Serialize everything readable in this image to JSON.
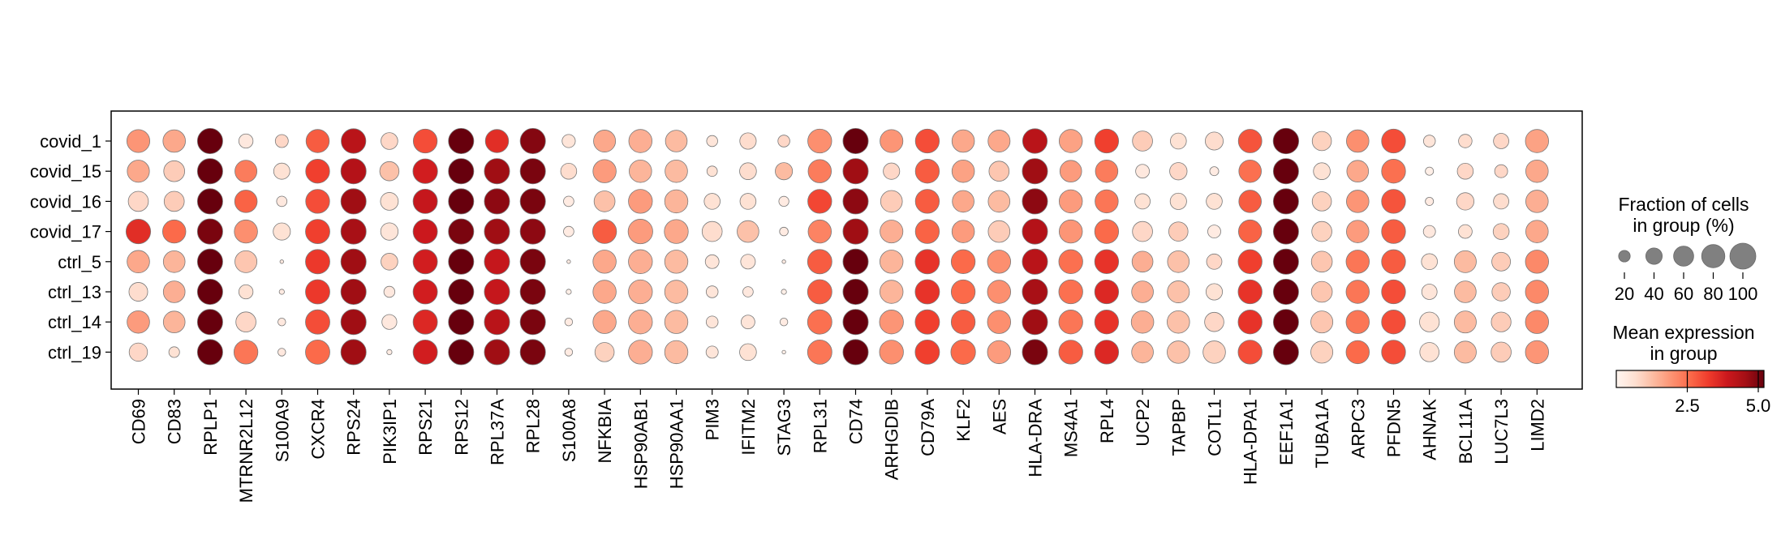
{
  "chart_data": {
    "type": "dotplot",
    "groups": [
      "covid_1",
      "covid_15",
      "covid_16",
      "covid_17",
      "ctrl_5",
      "ctrl_13",
      "ctrl_14",
      "ctrl_19"
    ],
    "genes": [
      "CD69",
      "CD83",
      "RPLP1",
      "MTRNR2L12",
      "S100A9",
      "CXCR4",
      "RPS24",
      "PIK3IP1",
      "RPS21",
      "RPS12",
      "RPL37A",
      "RPL28",
      "S100A8",
      "NFKBIA",
      "HSP90AB1",
      "HSP90AA1",
      "PIM3",
      "IFITM2",
      "STAG3",
      "RPL31",
      "CD74",
      "ARHGDIB",
      "CD79A",
      "KLF2",
      "AES",
      "HLA-DRA",
      "MS4A1",
      "RPL4",
      "UCP2",
      "TAPBP",
      "COTL1",
      "HLA-DPA1",
      "EEF1A1",
      "TUBA1A",
      "ARPC3",
      "PFDN5",
      "AHNAK",
      "BCL11A",
      "LUC7L3",
      "LIMD2"
    ],
    "fraction_pct": [
      [
        78,
        75,
        95,
        30,
        25,
        80,
        90,
        42,
        85,
        95,
        80,
        95,
        26,
        72,
        80,
        70,
        18,
        40,
        21,
        85,
        95,
        78,
        85,
        75,
        72,
        90,
        80,
        85,
        60,
        38,
        48,
        82,
        97,
        55,
        75,
        85,
        21,
        27,
        35,
        80
      ],
      [
        73,
        65,
        95,
        72,
        39,
        85,
        95,
        55,
        90,
        95,
        95,
        95,
        38,
        80,
        75,
        75,
        16,
        42,
        44,
        80,
        95,
        40,
        85,
        75,
        60,
        95,
        70,
        75,
        28,
        45,
        12,
        75,
        95,
        42,
        70,
        85,
        10,
        38,
        25,
        75
      ],
      [
        60,
        60,
        95,
        75,
        16,
        85,
        95,
        47,
        88,
        95,
        95,
        95,
        16,
        65,
        85,
        80,
        38,
        38,
        15,
        85,
        95,
        70,
        85,
        70,
        70,
        95,
        80,
        80,
        35,
        40,
        38,
        75,
        95,
        55,
        75,
        85,
        10,
        45,
        35,
        75
      ],
      [
        90,
        80,
        95,
        80,
        44,
        88,
        95,
        45,
        88,
        95,
        95,
        95,
        16,
        85,
        90,
        85,
        60,
        70,
        11,
        80,
        95,
        78,
        85,
        75,
        70,
        95,
        80,
        85,
        60,
        55,
        25,
        80,
        95,
        60,
        75,
        85,
        22,
        28,
        38,
        75
      ],
      [
        75,
        70,
        95,
        72,
        2,
        88,
        95,
        42,
        88,
        95,
        95,
        95,
        2,
        80,
        85,
        80,
        28,
        32,
        2,
        88,
        95,
        80,
        88,
        85,
        80,
        95,
        85,
        85,
        65,
        70,
        35,
        85,
        95,
        65,
        80,
        85,
        38,
        72,
        52,
        80
      ],
      [
        52,
        70,
        95,
        30,
        4,
        88,
        95,
        18,
        88,
        95,
        95,
        95,
        4,
        80,
        85,
        80,
        21,
        16,
        4,
        88,
        95,
        80,
        88,
        85,
        80,
        95,
        85,
        85,
        70,
        72,
        40,
        85,
        95,
        65,
        80,
        85,
        35,
        70,
        50,
        80
      ],
      [
        75,
        70,
        95,
        60,
        9,
        88,
        95,
        33,
        88,
        95,
        95,
        95,
        9,
        80,
        85,
        80,
        21,
        28,
        9,
        88,
        95,
        85,
        88,
        85,
        80,
        95,
        85,
        85,
        75,
        75,
        55,
        85,
        95,
        72,
        80,
        85,
        58,
        72,
        58,
        80
      ],
      [
        50,
        17,
        95,
        85,
        9,
        88,
        95,
        4,
        88,
        95,
        95,
        95,
        9,
        55,
        85,
        80,
        22,
        42,
        2,
        88,
        95,
        85,
        88,
        90,
        80,
        95,
        85,
        85,
        70,
        75,
        75,
        85,
        95,
        72,
        80,
        85,
        55,
        72,
        60,
        80
      ]
    ],
    "mean_expression": [
      [
        1.9,
        1.6,
        5.2,
        0.4,
        0.8,
        2.8,
        4.2,
        0.8,
        3.0,
        5.8,
        3.5,
        4.9,
        0.5,
        1.6,
        1.5,
        1.3,
        0.5,
        0.7,
        0.8,
        2.0,
        5.3,
        1.9,
        3.0,
        1.6,
        1.6,
        4.2,
        1.7,
        3.2,
        1.0,
        0.6,
        0.7,
        2.9,
        6.5,
        0.9,
        2.0,
        3.0,
        0.5,
        0.7,
        0.8,
        1.7
      ],
      [
        1.6,
        1.0,
        5.3,
        2.3,
        0.6,
        3.2,
        4.3,
        1.2,
        3.8,
        5.2,
        4.6,
        5.0,
        0.7,
        1.8,
        1.4,
        1.3,
        0.6,
        0.7,
        1.3,
        2.3,
        4.6,
        0.8,
        2.8,
        1.7,
        1.1,
        4.6,
        1.8,
        2.3,
        0.4,
        0.8,
        0.3,
        2.5,
        5.5,
        0.6,
        1.6,
        2.5,
        0.2,
        0.8,
        0.8,
        1.6
      ],
      [
        0.8,
        1.0,
        5.7,
        2.7,
        0.4,
        3.0,
        4.6,
        0.6,
        4.0,
        5.6,
        4.8,
        5.0,
        0.3,
        1.2,
        1.8,
        1.4,
        0.6,
        0.6,
        0.3,
        3.1,
        4.8,
        1.0,
        2.8,
        1.6,
        1.3,
        4.8,
        1.8,
        2.4,
        0.6,
        0.6,
        0.6,
        2.8,
        5.7,
        0.9,
        1.9,
        2.9,
        0.3,
        0.8,
        0.7,
        1.5
      ],
      [
        3.5,
        2.6,
        5.0,
        2.0,
        0.6,
        3.2,
        4.5,
        0.5,
        3.9,
        5.0,
        4.6,
        4.8,
        0.3,
        2.8,
        1.8,
        1.6,
        0.7,
        1.2,
        0.3,
        2.2,
        4.6,
        1.5,
        2.7,
        1.8,
        1.0,
        4.3,
        1.9,
        2.6,
        0.8,
        1.0,
        0.3,
        2.7,
        5.2,
        0.9,
        1.8,
        2.8,
        0.4,
        0.6,
        0.9,
        1.6
      ],
      [
        1.6,
        1.4,
        5.2,
        1.1,
        0.4,
        3.3,
        4.6,
        0.9,
        3.8,
        5.4,
        4.0,
        5.0,
        0.3,
        1.6,
        1.5,
        1.3,
        0.5,
        0.5,
        0.3,
        2.8,
        5.6,
        1.4,
        3.4,
        2.6,
        2.0,
        4.2,
        2.5,
        3.4,
        1.5,
        1.2,
        0.8,
        3.2,
        6.3,
        1.1,
        2.4,
        2.8,
        0.6,
        1.3,
        1.0,
        2.1
      ],
      [
        0.7,
        1.5,
        5.3,
        0.6,
        0.3,
        3.3,
        4.6,
        0.4,
        3.8,
        5.4,
        4.0,
        5.0,
        0.2,
        1.6,
        1.5,
        1.3,
        0.5,
        0.4,
        0.2,
        2.8,
        5.6,
        1.4,
        3.4,
        2.6,
        2.0,
        4.5,
        2.5,
        3.6,
        1.5,
        1.2,
        0.6,
        3.4,
        6.2,
        1.1,
        2.4,
        3.0,
        0.5,
        1.3,
        1.0,
        2.1
      ],
      [
        1.8,
        1.4,
        5.2,
        0.8,
        0.4,
        3.0,
        4.6,
        0.4,
        3.6,
        5.4,
        4.2,
        5.0,
        0.3,
        1.6,
        1.5,
        1.3,
        0.5,
        0.5,
        0.3,
        2.5,
        5.8,
        1.9,
        3.2,
        2.8,
        2.0,
        4.6,
        2.4,
        3.4,
        1.5,
        1.2,
        0.8,
        3.4,
        6.1,
        1.1,
        2.4,
        3.0,
        0.6,
        1.3,
        1.0,
        2.1
      ],
      [
        0.8,
        0.6,
        5.4,
        2.4,
        0.4,
        2.6,
        4.6,
        0.3,
        3.8,
        5.4,
        4.6,
        5.0,
        0.3,
        0.9,
        1.5,
        1.3,
        0.5,
        0.6,
        0.2,
        2.4,
        5.2,
        2.0,
        3.2,
        2.6,
        1.8,
        5.0,
        2.8,
        3.6,
        1.4,
        1.2,
        0.9,
        3.0,
        5.5,
        0.9,
        2.6,
        3.0,
        0.6,
        1.3,
        1.0,
        1.9
      ]
    ],
    "size_legend": {
      "title": "Fraction of cells\nin group (%)",
      "values": [
        20,
        40,
        60,
        80,
        100
      ],
      "tick_labels": [
        "20",
        "40",
        "60",
        "80",
        "100"
      ]
    },
    "color_legend": {
      "title": "Mean expression\nin group",
      "range": [
        0,
        5.2
      ],
      "ticks": [
        2.5,
        5.0
      ],
      "tick_labels": [
        "2.5",
        "5.0"
      ],
      "colormap": "Reds"
    },
    "grid": false,
    "legend_placement": "right"
  }
}
